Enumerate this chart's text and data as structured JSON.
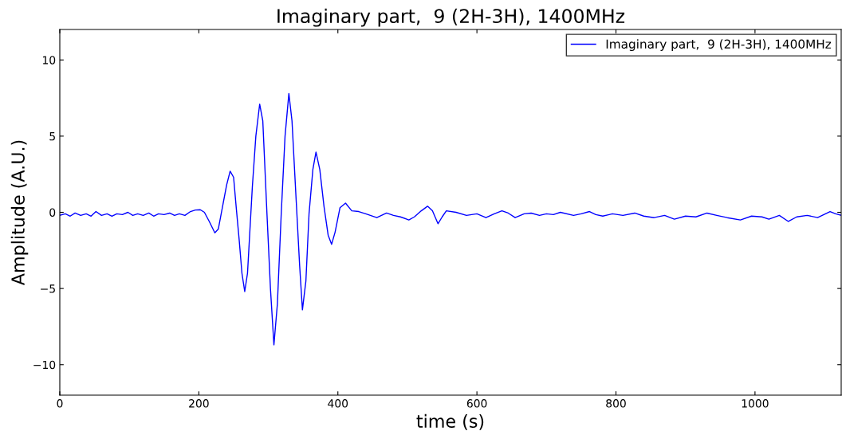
{
  "chart_data": {
    "type": "line",
    "title": "Imaginary part,  9 (2H-3H), 1400MHz",
    "xlabel": "time (s)",
    "ylabel": "Amplitude (A.U.)",
    "xlim": [
      0,
      1124
    ],
    "ylim": [
      -12,
      12
    ],
    "xticks": [
      0,
      200,
      400,
      600,
      800,
      1000
    ],
    "yticks": [
      {
        "value": -10,
        "label": "−10"
      },
      {
        "value": -5,
        "label": "−5"
      },
      0,
      5,
      10
    ],
    "grid": false,
    "legend": "top right",
    "marker": "none",
    "line_style": "solid",
    "series": [
      {
        "name": "Imaginary part,  9 (2H-3H), 1400MHz",
        "color": "#0000ff",
        "x": [
          0,
          8,
          15,
          22,
          30,
          38,
          45,
          52,
          60,
          68,
          75,
          82,
          90,
          98,
          105,
          112,
          120,
          128,
          135,
          142,
          150,
          158,
          165,
          172,
          180,
          188,
          195,
          202,
          208,
          215,
          223,
          228,
          235,
          240,
          245,
          250,
          254,
          258,
          262,
          266,
          270,
          277,
          282,
          287.5,
          292,
          298,
          303,
          308,
          313,
          318.5,
          324,
          329.5,
          334,
          340,
          345,
          349,
          354,
          358.5,
          364,
          368.5,
          374,
          380,
          386,
          391,
          396,
          403,
          411,
          420,
          430,
          440,
          456,
          470,
          480,
          490,
          502,
          510,
          520,
          529,
          536,
          544,
          550,
          556,
          570,
          585,
          600,
          613,
          625,
          636,
          645,
          655,
          668,
          678,
          690,
          700,
          710,
          720,
          739,
          750,
          762,
          771,
          781,
          795,
          810,
          827,
          840,
          855,
          870,
          884,
          900,
          915,
          931,
          945,
          960,
          979,
          995,
          1010,
          1020,
          1035,
          1048,
          1060,
          1075,
          1090,
          1108,
          1116,
          1124
        ],
        "values": [
          -0.2,
          -0.1,
          -0.25,
          -0.05,
          -0.2,
          -0.1,
          -0.25,
          0.05,
          -0.2,
          -0.1,
          -0.25,
          -0.1,
          -0.15,
          0.0,
          -0.2,
          -0.1,
          -0.2,
          -0.05,
          -0.25,
          -0.1,
          -0.15,
          -0.05,
          -0.2,
          -0.1,
          -0.2,
          0.05,
          0.15,
          0.17,
          0.0,
          -0.6,
          -1.35,
          -1.1,
          0.6,
          1.8,
          2.7,
          2.3,
          0.2,
          -1.8,
          -4.0,
          -5.2,
          -4.0,
          1.7,
          5.0,
          7.1,
          6.0,
          -0.1,
          -5.0,
          -8.7,
          -6.0,
          -0.1,
          5.0,
          7.8,
          6.0,
          0.8,
          -3.5,
          -6.4,
          -4.5,
          -0.1,
          2.8,
          3.95,
          2.8,
          0.4,
          -1.5,
          -2.1,
          -1.3,
          0.3,
          0.6,
          0.1,
          0.05,
          -0.1,
          -0.35,
          -0.05,
          -0.2,
          -0.3,
          -0.5,
          -0.3,
          0.1,
          0.4,
          0.1,
          -0.75,
          -0.3,
          0.1,
          0.0,
          -0.2,
          -0.1,
          -0.35,
          -0.1,
          0.1,
          -0.05,
          -0.35,
          -0.1,
          -0.05,
          -0.2,
          -0.1,
          -0.15,
          0.0,
          -0.2,
          -0.1,
          0.05,
          -0.15,
          -0.25,
          -0.1,
          -0.2,
          -0.05,
          -0.25,
          -0.35,
          -0.2,
          -0.45,
          -0.25,
          -0.3,
          -0.05,
          -0.2,
          -0.35,
          -0.5,
          -0.25,
          -0.3,
          -0.45,
          -0.2,
          -0.6,
          -0.3,
          -0.2,
          -0.35,
          0.05,
          -0.1,
          -0.2
        ]
      }
    ]
  }
}
